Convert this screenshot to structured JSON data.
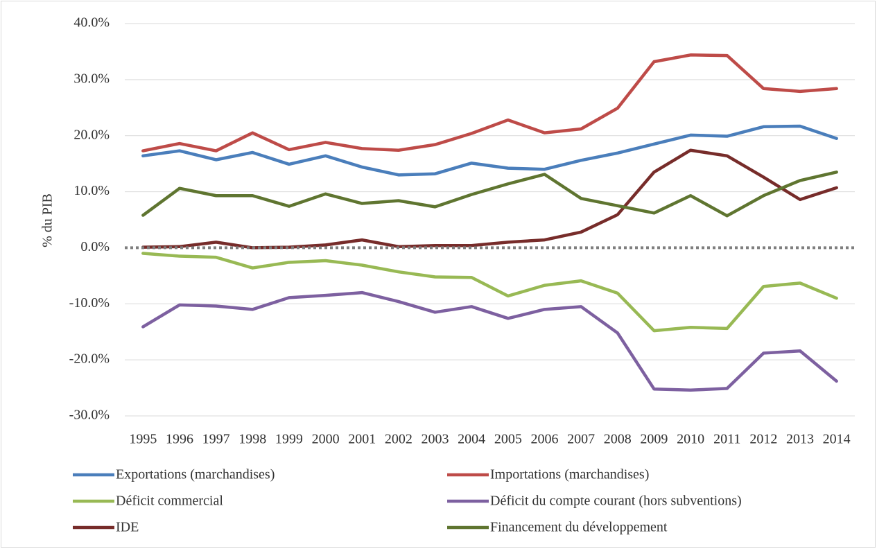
{
  "chart_data": {
    "type": "line",
    "ylabel": "% du PIB",
    "categories": [
      "1995",
      "1996",
      "1997",
      "1998",
      "1999",
      "2000",
      "2001",
      "2002",
      "2003",
      "2004",
      "2005",
      "2006",
      "2007",
      "2008",
      "2009",
      "2010",
      "2011",
      "2012",
      "2013",
      "2014"
    ],
    "series": [
      {
        "name": "Exportations (marchandises)",
        "color": "#4a7ebb",
        "values": [
          16.4,
          17.3,
          15.7,
          17.0,
          14.9,
          16.4,
          14.4,
          13.0,
          13.2,
          15.1,
          14.2,
          14.0,
          15.6,
          16.9,
          18.5,
          20.1,
          19.9,
          21.6,
          21.7,
          19.5
        ]
      },
      {
        "name": "Importations (marchandises)",
        "color": "#be4b48",
        "values": [
          17.3,
          18.6,
          17.3,
          20.5,
          17.5,
          18.8,
          17.7,
          17.4,
          18.4,
          20.4,
          22.8,
          20.5,
          21.2,
          24.9,
          33.2,
          34.4,
          34.3,
          28.4,
          27.9,
          28.4
        ]
      },
      {
        "name": "Déficit commercial",
        "color": "#98b954",
        "values": [
          -1.0,
          -1.5,
          -1.7,
          -3.6,
          -2.6,
          -2.3,
          -3.1,
          -4.3,
          -5.2,
          -5.3,
          -8.6,
          -6.7,
          -5.9,
          -8.1,
          -14.8,
          -14.2,
          -14.4,
          -6.9,
          -6.3,
          -9.0
        ]
      },
      {
        "name": "Déficit du compte courant (hors subventions)",
        "color": "#7d60a0",
        "values": [
          -14.1,
          -10.2,
          -10.4,
          -11.0,
          -8.9,
          -8.5,
          -8.0,
          -9.6,
          -11.5,
          -10.5,
          -12.6,
          -11.0,
          -10.5,
          -15.2,
          -25.2,
          -25.4,
          -25.1,
          -18.8,
          -18.4,
          -23.8
        ]
      },
      {
        "name": "IDE",
        "color": "#772c2a",
        "values": [
          0.1,
          0.2,
          1.0,
          0.0,
          0.1,
          0.5,
          1.4,
          0.2,
          0.4,
          0.4,
          1.0,
          1.4,
          2.8,
          5.9,
          13.5,
          17.4,
          16.4,
          12.6,
          8.6,
          10.7
        ]
      },
      {
        "name": "Financement du développement",
        "color": "#5f7530",
        "values": [
          5.8,
          10.6,
          9.3,
          9.3,
          7.4,
          9.6,
          7.9,
          8.4,
          7.3,
          9.5,
          11.4,
          13.1,
          8.8,
          7.5,
          6.2,
          9.3,
          5.7,
          9.3,
          12.0,
          13.5
        ]
      }
    ],
    "ylim": [
      -30,
      40
    ],
    "yticks": [
      {
        "value": -30,
        "label": "-30.0%"
      },
      {
        "value": -20,
        "label": "-20.0%"
      },
      {
        "value": -10,
        "label": "-10.0%"
      },
      {
        "value": 0,
        "label": "0.0%"
      },
      {
        "value": 10,
        "label": "10.0%"
      },
      {
        "value": 20,
        "label": "20.0%"
      },
      {
        "value": 30,
        "label": "30.0%"
      },
      {
        "value": 40,
        "label": "40.0%"
      }
    ],
    "grid": true,
    "legend": "bottom"
  }
}
